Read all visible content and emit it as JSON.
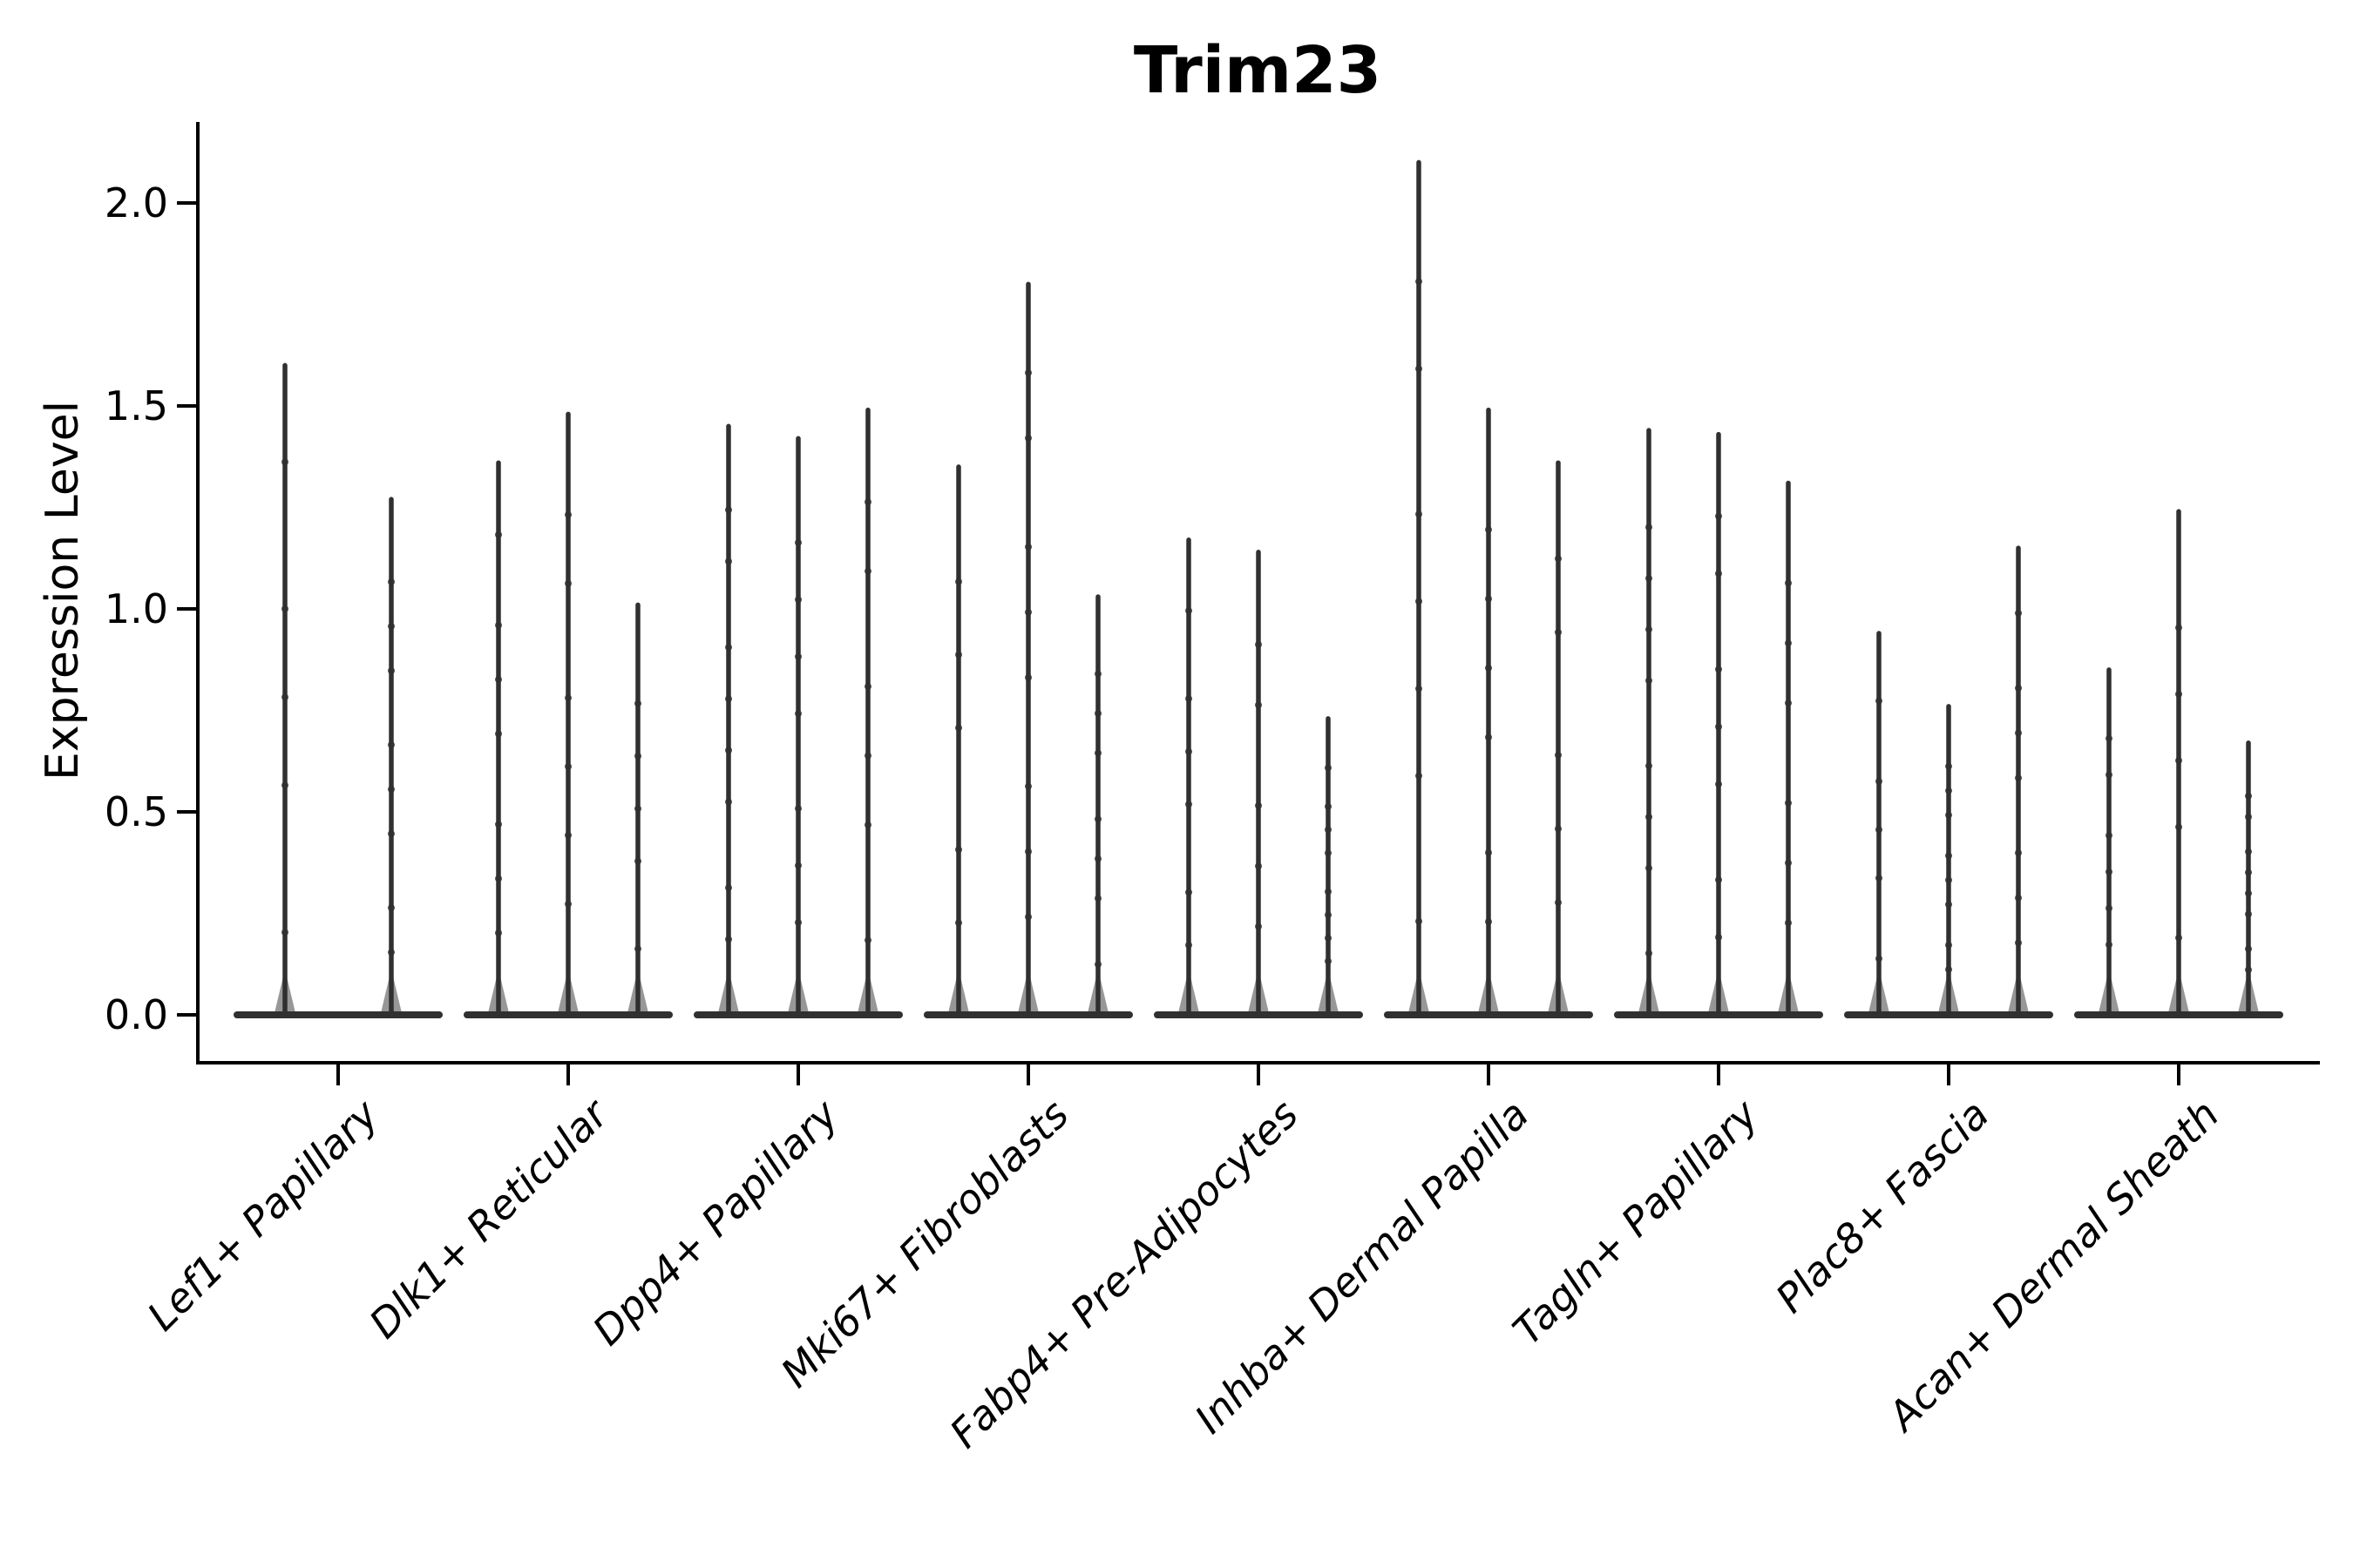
{
  "chart_data": {
    "type": "violin",
    "title": "Trim23",
    "ylabel": "Expression Level",
    "xlabel": "",
    "ytick_labels": [
      "0.0",
      "0.5",
      "1.0",
      "1.5",
      "2.0"
    ],
    "ytick_values": [
      0.0,
      0.5,
      1.0,
      1.5,
      2.0
    ],
    "ylim": [
      -0.12,
      2.2
    ],
    "grid": false,
    "legend": "none",
    "violin_min": 0.0,
    "groups": [
      {
        "category": "Lef1+ Papillary",
        "violin_maxima": [
          1.6,
          1.27
        ]
      },
      {
        "category": "Dlk1+ Reticular",
        "violin_maxima": [
          1.36,
          1.48,
          1.01
        ]
      },
      {
        "category": "Dpp4+ Papillary",
        "violin_maxima": [
          1.45,
          1.42,
          1.49
        ]
      },
      {
        "category": "Mki67+ Fibroblasts",
        "violin_maxima": [
          1.35,
          1.8,
          1.03
        ]
      },
      {
        "category": "Fabp4+ Pre-Adipocytes",
        "violin_maxima": [
          1.17,
          1.14,
          0.73
        ]
      },
      {
        "category": "Inhba+ Dermal Papilla",
        "violin_maxima": [
          2.1,
          1.49,
          1.36
        ]
      },
      {
        "category": "Tagln+ Papillary",
        "violin_maxima": [
          1.44,
          1.43,
          1.31
        ]
      },
      {
        "category": "Plac8+ Fascia",
        "violin_maxima": [
          0.94,
          0.76,
          1.15
        ]
      },
      {
        "category": "Acan+ Dermal Sheath",
        "violin_maxima": [
          0.85,
          1.24,
          0.67
        ]
      }
    ],
    "colors": {
      "violin": "#303030",
      "axis": "#000000",
      "text": "#000000"
    }
  }
}
